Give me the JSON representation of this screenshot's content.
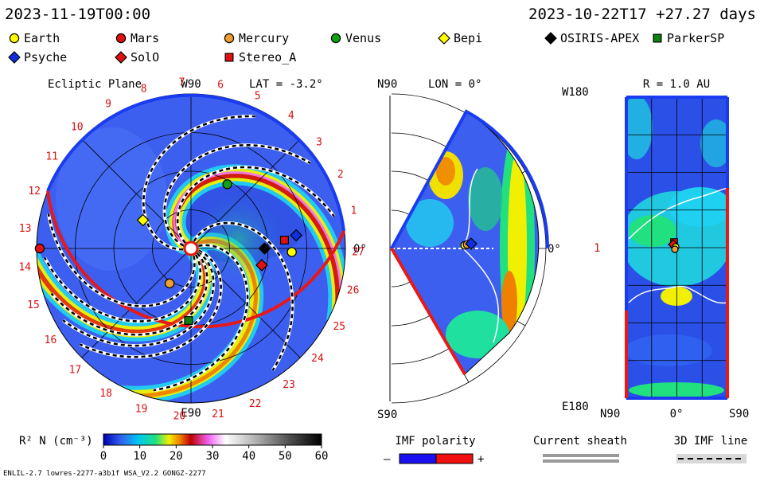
{
  "header": {
    "left_time": "2023-11-19T00:00",
    "right_time": "2023-10-22T17 +27.27 days"
  },
  "legend": {
    "items": [
      {
        "label": "Earth",
        "shape": "circle",
        "color": "#ffff00"
      },
      {
        "label": "Mars",
        "shape": "circle",
        "color": "#e01010"
      },
      {
        "label": "Mercury",
        "shape": "circle",
        "color": "#f0a030"
      },
      {
        "label": "Venus",
        "shape": "circle",
        "color": "#10a010"
      },
      {
        "label": "Bepi",
        "shape": "diamond",
        "color": "#ffff00"
      },
      {
        "label": "OSIRIS-APEX",
        "shape": "diamond",
        "color": "#000000"
      },
      {
        "label": "ParkerSP",
        "shape": "square",
        "color": "#108010"
      },
      {
        "label": "Psyche",
        "shape": "diamond",
        "color": "#1030e0"
      },
      {
        "label": "SolO",
        "shape": "diamond",
        "color": "#e01010"
      },
      {
        "label": "Stereo_A",
        "shape": "square",
        "color": "#e01010"
      }
    ]
  },
  "panels": {
    "ecliptic": {
      "title": "Ecliptic Plane",
      "lat": "LAT = -3.2°",
      "top_label": "W90",
      "bottom_label": "E90",
      "right_label": "0°",
      "carrington": [
        "1",
        "2",
        "3",
        "4",
        "5",
        "6",
        "7",
        "8",
        "9",
        "10",
        "11",
        "12",
        "13",
        "14",
        "15",
        "16",
        "17",
        "18",
        "19",
        "20",
        "21",
        "22",
        "23",
        "24",
        "25",
        "26",
        "27"
      ]
    },
    "meridional": {
      "title": "LON = 0°",
      "top_label": "N90",
      "bottom_label": "S90",
      "right_label": "0°"
    },
    "shell": {
      "title": "R = 1.0 AU",
      "top_left": "W180",
      "bottom_left": "E180",
      "mid_left": "1",
      "x_left": "N90",
      "x_mid": "0°",
      "x_right": "S90"
    }
  },
  "colorbar": {
    "label": "R² N (cm⁻³)",
    "ticks": [
      "0",
      "10",
      "20",
      "30",
      "40",
      "50",
      "60"
    ]
  },
  "bottom_legend": {
    "imf_title": "IMF polarity",
    "imf_minus": "–",
    "imf_plus": "+",
    "sheath_title": "Current sheath",
    "imf_line_title": "3D IMF line"
  },
  "footer": "ENLIL-2.7 lowres-2277-a3b1f WSA_V2.2 GONGZ-2277",
  "chart_data": {
    "type": "heatmap",
    "title": "",
    "quantity": "R² N (cm⁻³)",
    "color_range": [
      0,
      60
    ],
    "colormap": [
      "#0000b0",
      "#3060f0",
      "#00c8f0",
      "#20e080",
      "#f0f000",
      "#f08000",
      "#c00000",
      "#f060f0",
      "#ffffff",
      "#a0a0a0",
      "#000000"
    ],
    "bodies_ecliptic": [
      {
        "name": "Earth",
        "r_au": 1.0,
        "angle_deg": -2
      },
      {
        "name": "Mars",
        "r_au": 1.5,
        "angle_deg": 180
      },
      {
        "name": "Mercury",
        "r_au": 0.4,
        "angle_deg": 238
      },
      {
        "name": "Venus",
        "r_au": 0.72,
        "angle_deg": 60
      },
      {
        "name": "Bepi",
        "r_au": 0.55,
        "angle_deg": 150
      },
      {
        "name": "OSIRIS-APEX",
        "r_au": 0.73,
        "angle_deg": 0
      },
      {
        "name": "ParkerSP",
        "r_au": 0.7,
        "angle_deg": 268
      },
      {
        "name": "Psyche",
        "r_au": 1.05,
        "angle_deg": 7
      },
      {
        "name": "SolO",
        "r_au": 0.72,
        "angle_deg": -13
      },
      {
        "name": "Stereo_A",
        "r_au": 0.93,
        "angle_deg": 5
      }
    ]
  }
}
